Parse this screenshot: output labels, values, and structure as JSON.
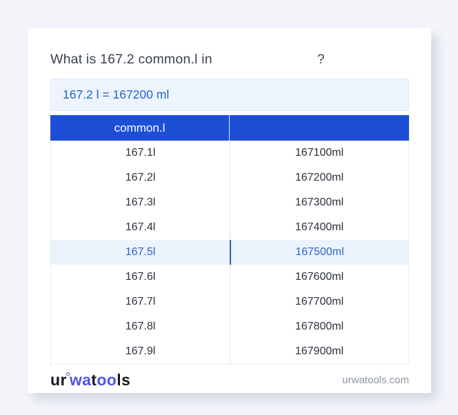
{
  "page": {
    "title_prefix": "What is 167.2 common.l in",
    "title_suffix": "?"
  },
  "result": {
    "text": "167.2 l = 167200 ml"
  },
  "table": {
    "header": {
      "left": "common.l",
      "right": ""
    },
    "highlighted_index": 4,
    "rows": [
      {
        "left": "167.1l",
        "right": "167100ml"
      },
      {
        "left": "167.2l",
        "right": "167200ml"
      },
      {
        "left": "167.3l",
        "right": "167300ml"
      },
      {
        "left": "167.4l",
        "right": "167400ml"
      },
      {
        "left": "167.5l",
        "right": "167500ml"
      },
      {
        "left": "167.6l",
        "right": "167600ml"
      },
      {
        "left": "167.7l",
        "right": "167700ml"
      },
      {
        "left": "167.8l",
        "right": "167800ml"
      },
      {
        "left": "167.9l",
        "right": "167900ml"
      }
    ]
  },
  "footer": {
    "logo_parts": {
      "p1": "ur",
      "p2": "wa",
      "p3": "t",
      "p4": "oo",
      "p5": "ls"
    },
    "site": "urwatools.com"
  },
  "colors": {
    "page_bg": "#f4f5fa",
    "header_bg": "#1d4fd6",
    "accent_blue": "#2563c7",
    "result_bg": "#edf4fd",
    "highlight_bg": "#ebf3fd",
    "highlight_text": "#2d64c8",
    "highlight_divider": "#2f5cab",
    "row_text": "#2b313d",
    "logo_blue": "#4c56ea"
  }
}
